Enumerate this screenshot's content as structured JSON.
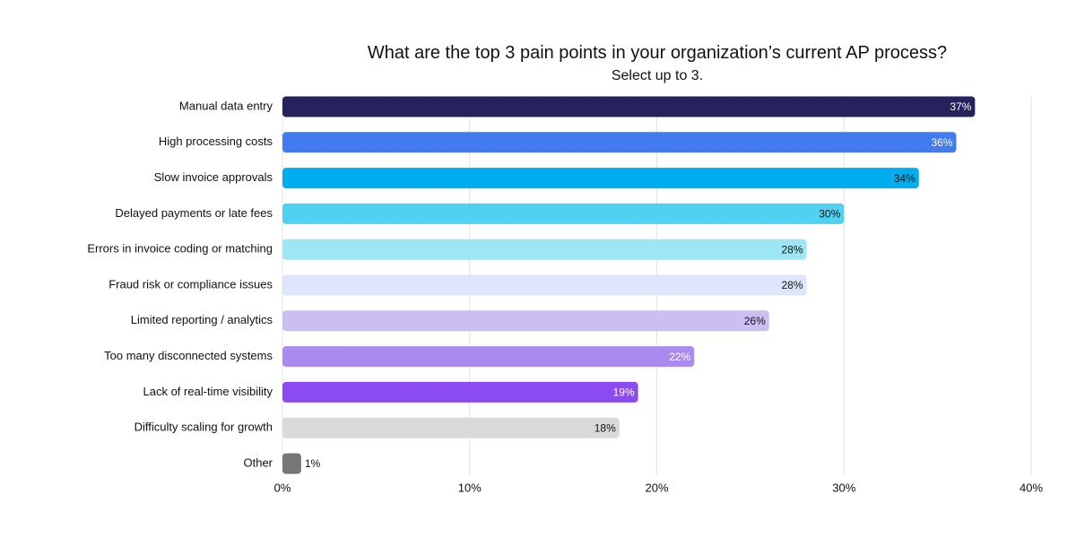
{
  "chart_data": {
    "type": "bar",
    "orientation": "horizontal",
    "title": "What are the top 3 pain points in your organization’s current AP process?",
    "subtitle": "Select up to 3.",
    "categories": [
      "Manual data entry",
      "High processing costs",
      "Slow invoice approvals",
      "Delayed payments or late fees",
      "Errors in invoice coding or matching",
      "Fraud risk or compliance issues",
      "Limited reporting / analytics",
      "Too many disconnected systems",
      "Lack of real-time visibility",
      "Difficulty scaling for growth",
      "Other"
    ],
    "values": [
      37,
      36,
      34,
      30,
      28,
      28,
      26,
      22,
      19,
      18,
      1
    ],
    "value_labels": [
      "37%",
      "36%",
      "34%",
      "30%",
      "28%",
      "28%",
      "26%",
      "22%",
      "19%",
      "18%",
      "1%"
    ],
    "colors": [
      "#25225e",
      "#427bef",
      "#00aeef",
      "#4fd1f2",
      "#9de6f5",
      "#dfe5fb",
      "#cbbff2",
      "#a98bef",
      "#8a4cf0",
      "#d9d9d9",
      "#767676"
    ],
    "label_colors": [
      "#ffffff",
      "#ffffff",
      "#111111",
      "#111111",
      "#111111",
      "#111111",
      "#111111",
      "#ffffff",
      "#ffffff",
      "#111111",
      "#111111"
    ],
    "xlim": [
      0,
      40
    ],
    "xticks": [
      0,
      10,
      20,
      30,
      40
    ],
    "xtick_labels": [
      "0%",
      "10%",
      "20%",
      "30%",
      "40%"
    ],
    "grid": true,
    "xlabel": "",
    "ylabel": ""
  }
}
